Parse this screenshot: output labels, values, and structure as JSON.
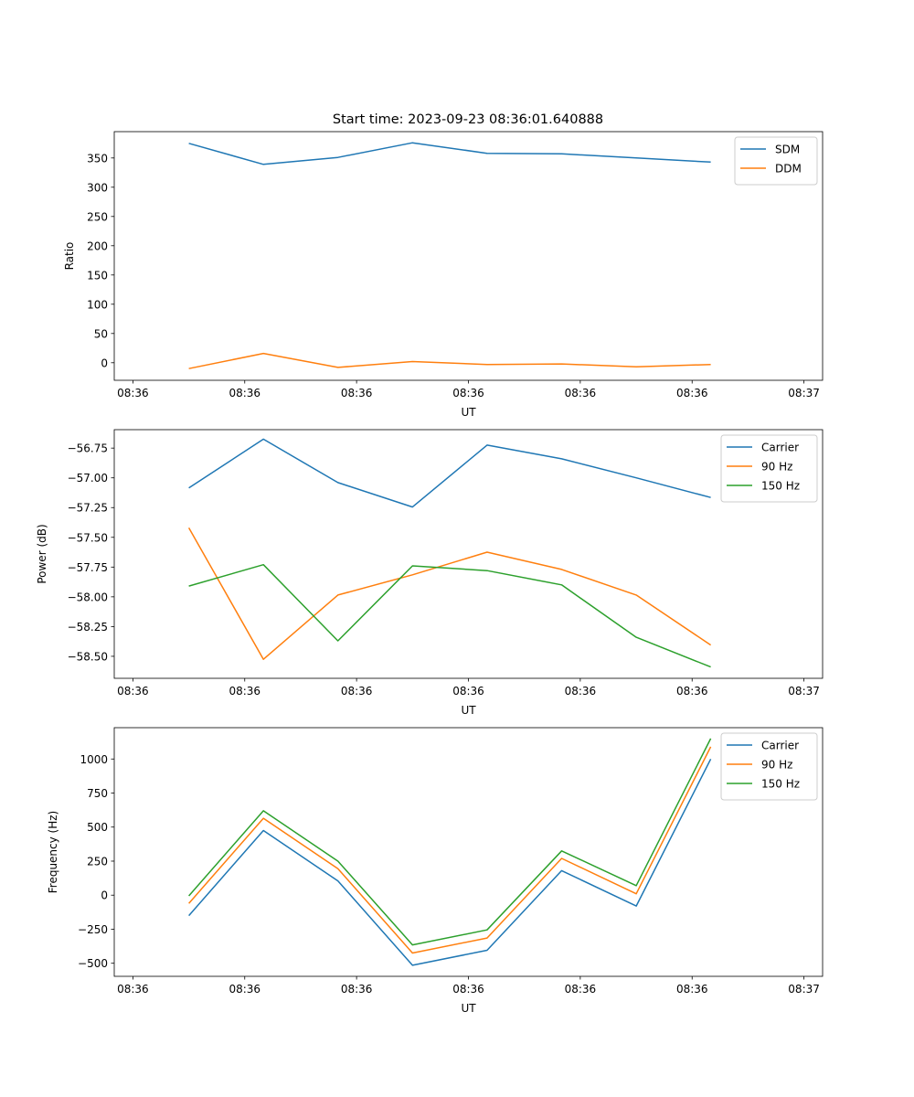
{
  "figure_title": "Start time: 2023-09-23 08:36:01.640888",
  "chart_data": [
    {
      "type": "line",
      "title": "Start time: 2023-09-23 08:36:01.640888",
      "xlabel": "UT",
      "ylabel": "Ratio",
      "x": [
        0.75,
        1.75,
        2.75,
        3.75,
        4.75,
        5.75,
        6.75,
        7.75
      ],
      "xlim": [
        -0.25,
        9.25
      ],
      "xticks": [
        0,
        1.5,
        3,
        4.5,
        6,
        7.5,
        9
      ],
      "xtick_labels": [
        "08:36",
        "08:36",
        "08:36",
        "08:36",
        "08:36",
        "08:36",
        "08:37"
      ],
      "ylim": [
        -30,
        395
      ],
      "yticks": [
        0,
        50,
        100,
        150,
        200,
        250,
        300,
        350
      ],
      "ytick_labels": [
        "0",
        "50",
        "100",
        "150",
        "200",
        "250",
        "300",
        "350"
      ],
      "legend": "top-right",
      "series": [
        {
          "name": "SDM",
          "color": "#1f77b4",
          "values": [
            375,
            339,
            351,
            376,
            358,
            357,
            350,
            343
          ]
        },
        {
          "name": "DDM",
          "color": "#ff7f0e",
          "values": [
            -10,
            16,
            -8,
            2,
            -3,
            -2,
            -7,
            -3
          ]
        }
      ]
    },
    {
      "type": "line",
      "title": "",
      "xlabel": "UT",
      "ylabel": "Power (dB)",
      "x": [
        0.75,
        1.75,
        2.75,
        3.75,
        4.75,
        5.75,
        6.75,
        7.75
      ],
      "xlim": [
        -0.25,
        9.25
      ],
      "xticks": [
        0,
        1.5,
        3,
        4.5,
        6,
        7.5,
        9
      ],
      "xtick_labels": [
        "08:36",
        "08:36",
        "08:36",
        "08:36",
        "08:36",
        "08:36",
        "08:37"
      ],
      "ylim": [
        -58.685,
        -56.595
      ],
      "yticks": [
        -58.5,
        -58.25,
        -58.0,
        -57.75,
        -57.5,
        -57.25,
        -57.0,
        -56.75
      ],
      "ytick_labels": [
        "−58.50",
        "−58.25",
        "−58.00",
        "−57.75",
        "−57.50",
        "−57.25",
        "−57.00",
        "−56.75"
      ],
      "legend": "top-right",
      "series": [
        {
          "name": "Carrier",
          "color": "#1f77b4",
          "values": [
            -57.085,
            -56.675,
            -57.04,
            -57.245,
            -56.725,
            -56.84,
            -57.0,
            -57.165
          ]
        },
        {
          "name": "90 Hz",
          "color": "#ff7f0e",
          "values": [
            -57.42,
            -58.525,
            -57.985,
            -57.815,
            -57.625,
            -57.77,
            -57.985,
            -58.405
          ]
        },
        {
          "name": "150 Hz",
          "color": "#2ca02c",
          "values": [
            -57.91,
            -57.73,
            -58.37,
            -57.74,
            -57.78,
            -57.9,
            -58.34,
            -58.59
          ]
        }
      ]
    },
    {
      "type": "line",
      "title": "",
      "xlabel": "UT",
      "ylabel": "Frequency (Hz)",
      "x": [
        0.75,
        1.75,
        2.75,
        3.75,
        4.75,
        5.75,
        6.75,
        7.75
      ],
      "xlim": [
        -0.25,
        9.25
      ],
      "xticks": [
        0,
        1.5,
        3,
        4.5,
        6,
        7.5,
        9
      ],
      "xtick_labels": [
        "08:36",
        "08:36",
        "08:36",
        "08:36",
        "08:36",
        "08:36",
        "08:37"
      ],
      "ylim": [
        -596,
        1230
      ],
      "yticks": [
        -500,
        -250,
        0,
        250,
        500,
        750,
        1000
      ],
      "ytick_labels": [
        "−500",
        "−250",
        "0",
        "250",
        "500",
        "750",
        "1000"
      ],
      "legend": "top-right",
      "series": [
        {
          "name": "Carrier",
          "color": "#1f77b4",
          "values": [
            -150,
            475,
            105,
            -515,
            -405,
            180,
            -80,
            1000
          ]
        },
        {
          "name": "90 Hz",
          "color": "#ff7f0e",
          "values": [
            -60,
            565,
            195,
            -425,
            -315,
            270,
            10,
            1090
          ]
        },
        {
          "name": "150 Hz",
          "color": "#2ca02c",
          "values": [
            -5,
            620,
            250,
            -365,
            -255,
            325,
            70,
            1150
          ]
        }
      ]
    }
  ]
}
